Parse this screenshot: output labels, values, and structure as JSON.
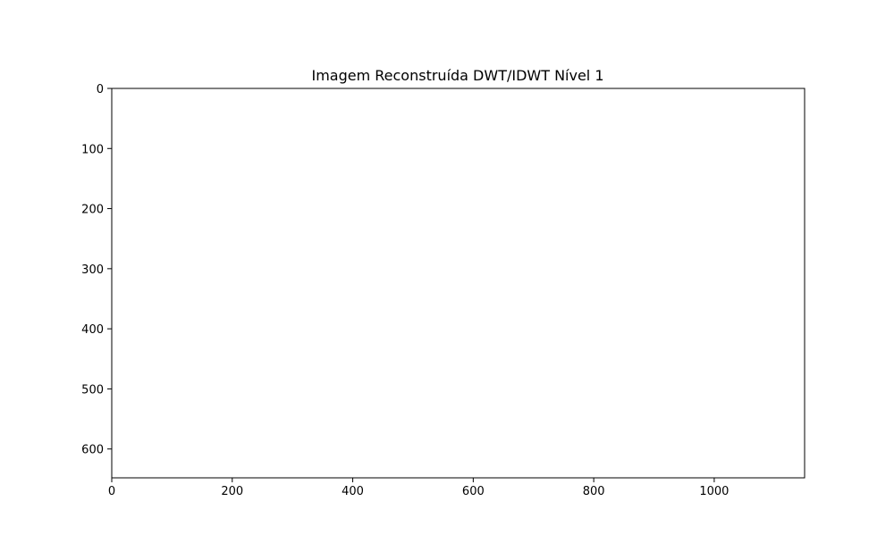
{
  "chart_data": {
    "type": "heatmap",
    "title": "Imagem Reconstruída DWT/IDWT Nível 1",
    "xlabel": "",
    "ylabel": "",
    "xlim": [
      0,
      1150
    ],
    "ylim": [
      648,
      0
    ],
    "x_ticks": [
      0,
      200,
      400,
      600,
      800,
      1000
    ],
    "y_ticks": [
      0,
      100,
      200,
      300,
      400,
      500,
      600
    ],
    "x_tick_labels": [
      "0",
      "200",
      "400",
      "600",
      "800",
      "1000"
    ],
    "y_tick_labels": [
      "0",
      "100",
      "200",
      "300",
      "400",
      "500",
      "600"
    ],
    "image_fill": "#ffffff",
    "grid": false,
    "colors": {
      "axes": "#000000",
      "background": "#ffffff"
    }
  }
}
